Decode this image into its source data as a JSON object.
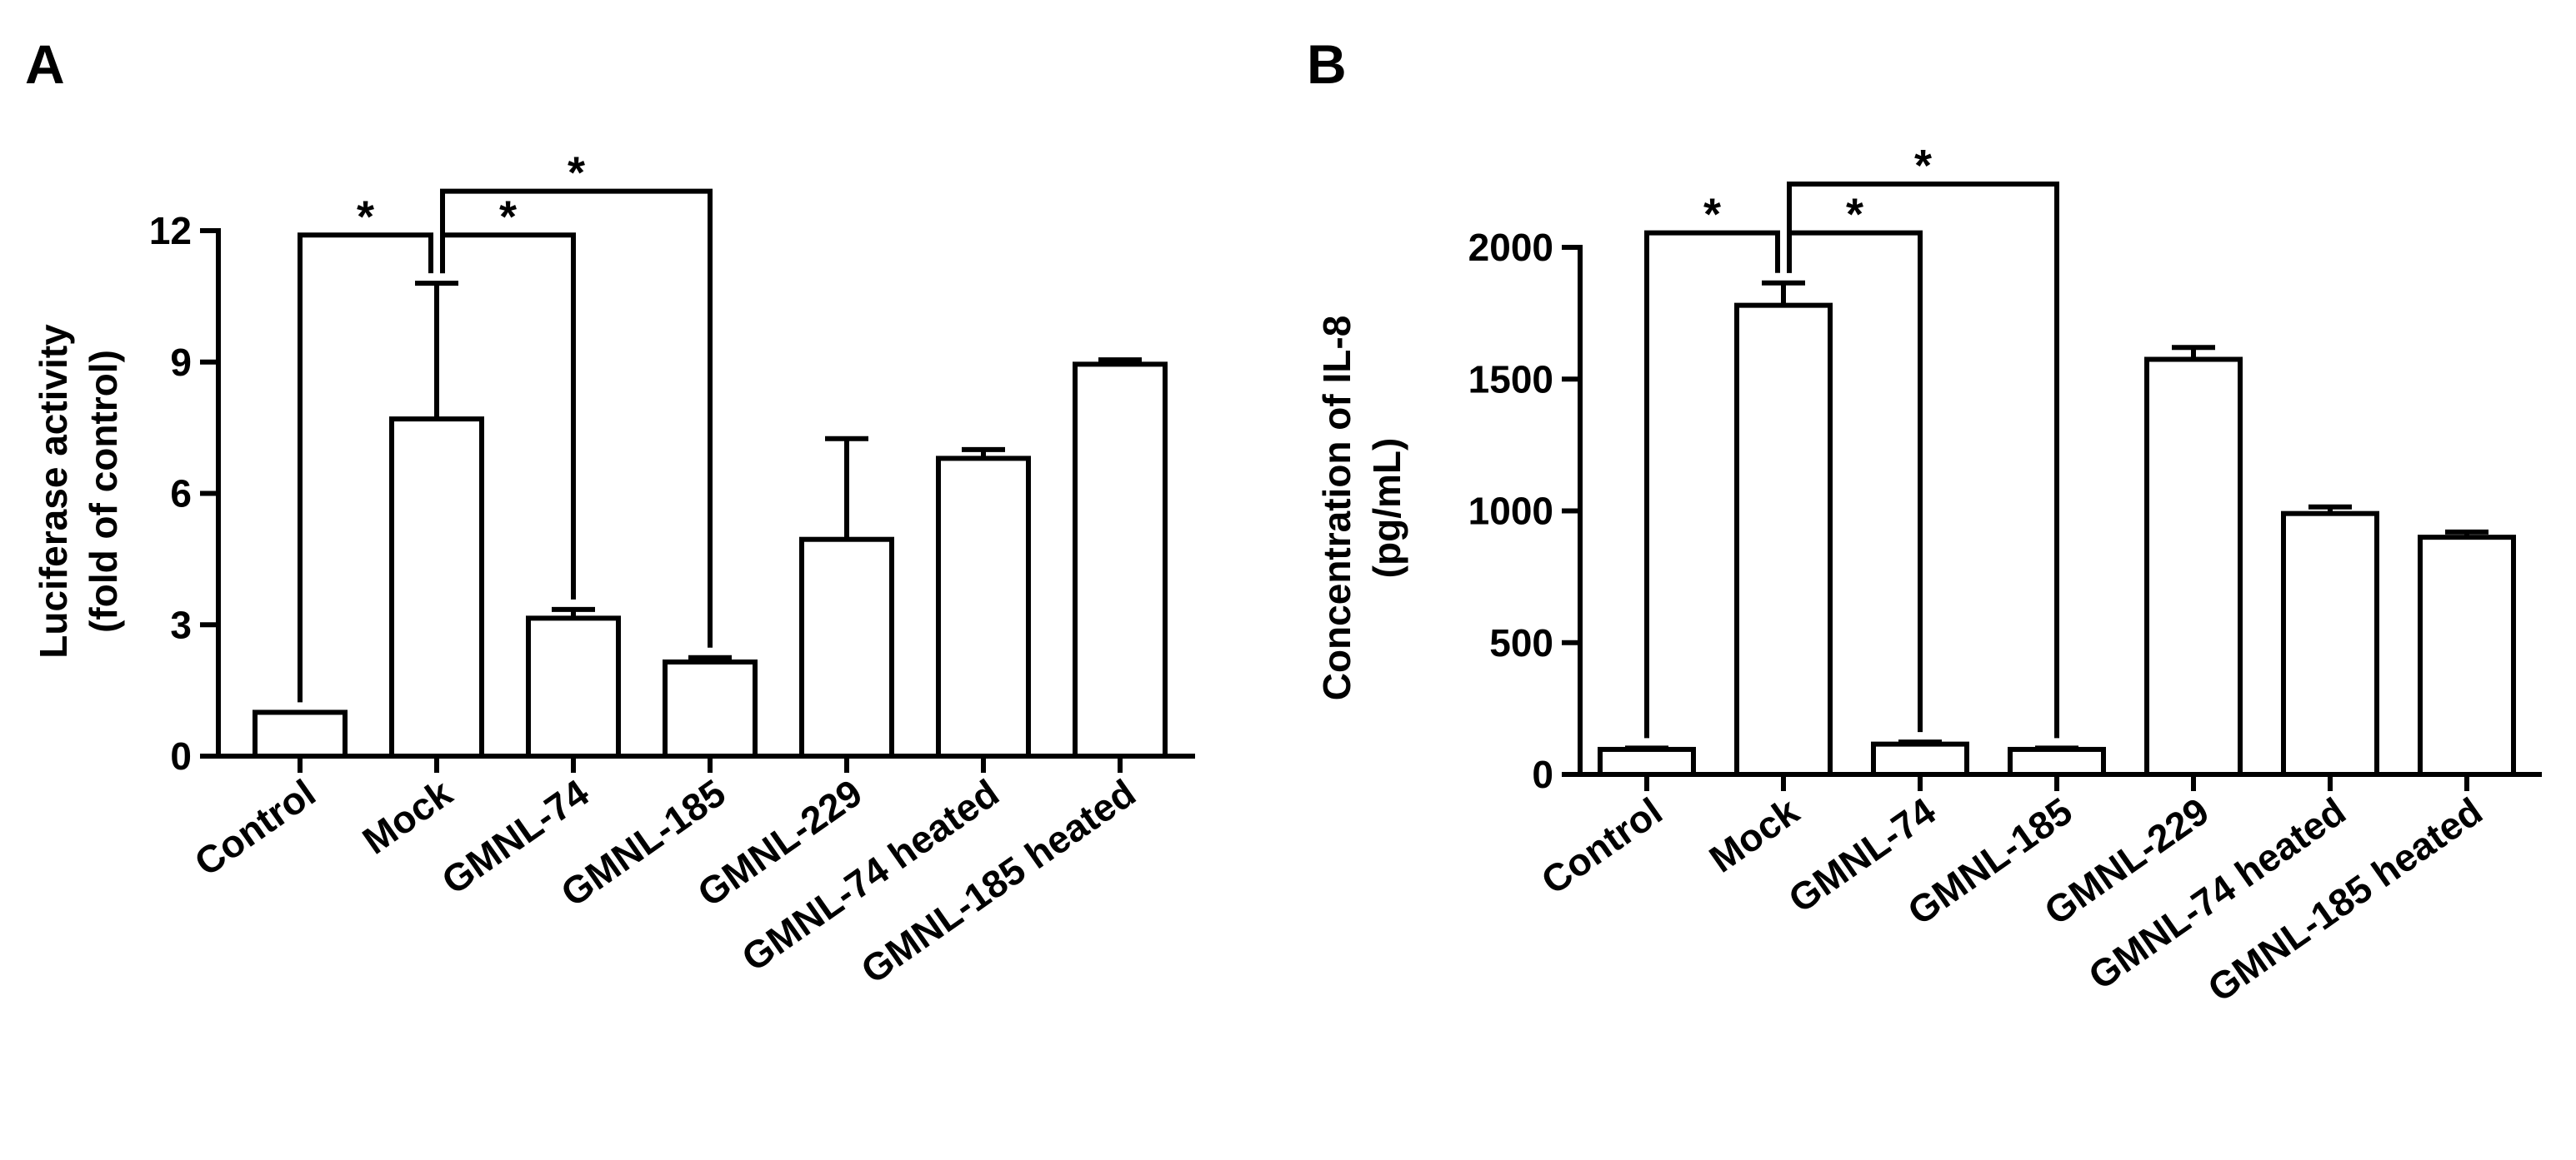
{
  "chart_data": [
    {
      "panel": "A",
      "type": "bar",
      "ylabel_line1": "Luciferase activity",
      "ylabel_line2": "(fold of control)",
      "ylim": [
        0,
        12
      ],
      "yticks": [
        0,
        3,
        6,
        9,
        12
      ],
      "categories": [
        "Control",
        "Mock",
        "GMNL-74",
        "GMNL-185",
        "GMNL-229",
        "GMNL-74 heated",
        "GMNL-185 heated"
      ],
      "values": [
        1.0,
        7.7,
        3.15,
        2.15,
        4.95,
        6.8,
        8.95
      ],
      "errors": [
        0.0,
        3.1,
        0.2,
        0.1,
        2.3,
        0.2,
        0.1
      ],
      "significance": [
        {
          "from": 0,
          "to": 1,
          "label": "*",
          "level": 11.9
        },
        {
          "from": 1,
          "to": 2,
          "label": "*",
          "level": 11.9
        },
        {
          "from": 1,
          "to": 3,
          "label": "*",
          "level": 12.9
        }
      ]
    },
    {
      "panel": "B",
      "type": "bar",
      "ylabel_line1": "Concentration of IL-8",
      "ylabel_line2": "(pg/mL)",
      "ylim": [
        0,
        2000
      ],
      "yticks": [
        0,
        500,
        1000,
        1500,
        2000
      ],
      "categories": [
        "Control",
        "Mock",
        "GMNL-74",
        "GMNL-185",
        "GMNL-229",
        "GMNL-74 heated",
        "GMNL-185 heated"
      ],
      "values": [
        95,
        1780,
        115,
        95,
        1575,
        990,
        900
      ],
      "errors": [
        5,
        85,
        8,
        5,
        45,
        25,
        20
      ],
      "significance": [
        {
          "from": 0,
          "to": 1,
          "label": "*",
          "level": 2055
        },
        {
          "from": 1,
          "to": 2,
          "label": "*",
          "level": 2055
        },
        {
          "from": 1,
          "to": 3,
          "label": "*",
          "level": 2240
        }
      ]
    }
  ]
}
